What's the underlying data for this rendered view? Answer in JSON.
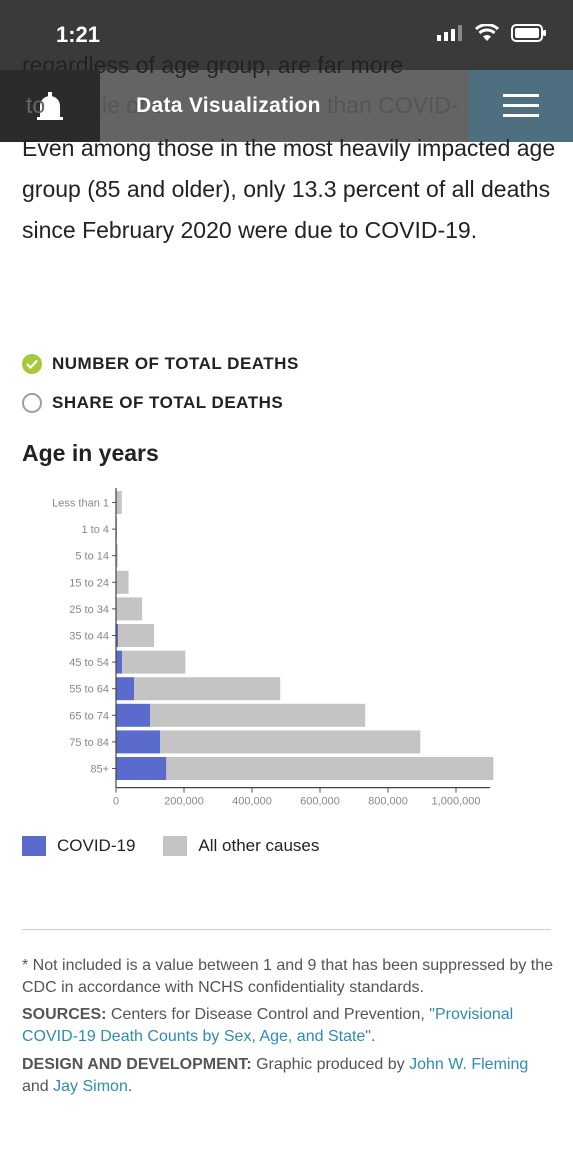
{
  "status_bar": {
    "time": "1:21"
  },
  "nav": {
    "title": "Data Visualization"
  },
  "partial_text": {
    "line1": "regardless of age group, are far more",
    "line2_left": "to",
    "line2_mid": "ie of s",
    "line2_right": "than COVID-"
  },
  "paragraph": "Even among those in the most heavily impacted age group (85 and older), only 13.3 percent of all deaths since February 2020 were due to COVID-19.",
  "toggles": [
    {
      "label": "NUMBER OF TOTAL DEATHS",
      "selected": true
    },
    {
      "label": "SHARE OF TOTAL DEATHS",
      "selected": false
    }
  ],
  "chart_title": "Age in years",
  "chart_data": {
    "type": "bar",
    "orientation": "horizontal",
    "stacked": true,
    "categories": [
      "Less than 1",
      "1 to 4",
      "5 to 14",
      "15 to 24",
      "25 to 34",
      "35 to 44",
      "45 to 54",
      "55 to 64",
      "65 to 74",
      "75 to 84",
      "85+"
    ],
    "series": [
      {
        "name": "COVID-19",
        "color": "#5b6acd",
        "values": [
          0,
          0,
          0,
          1000,
          2000,
          6000,
          18000,
          53000,
          100000,
          130000,
          148000
        ]
      },
      {
        "name": "All other causes",
        "color": "#c4c4c4",
        "values": [
          17000,
          3000,
          5000,
          36000,
          75000,
          106000,
          186000,
          430000,
          633000,
          765000,
          962000
        ]
      }
    ],
    "xlim": [
      0,
      1100000
    ],
    "xticks": [
      0,
      200000,
      400000,
      600000,
      800000,
      1000000
    ],
    "xtick_labels": [
      "0",
      "200,000",
      "400,000",
      "600,000",
      "800,000",
      "1,000,000"
    ],
    "legend_position": "bottom-left"
  },
  "legend": [
    {
      "label": "COVID-19",
      "color": "#5b6acd"
    },
    {
      "label": "All other causes",
      "color": "#c4c4c4"
    }
  ],
  "footnote": "* Not included is a value between 1 and 9 that has been suppressed by the CDC in accordance with NCHS confidentiality standards.",
  "sources": {
    "heading": "SOURCES:",
    "text": "Centers for Disease Control and Prevention, ",
    "link": "\"Provisional COVID-19 Death Counts by Sex, Age, and State\"",
    "end": "."
  },
  "credits": {
    "heading": "DESIGN AND DEVELOPMENT:",
    "text": "Graphic produced by ",
    "author1": "John W. Fleming",
    "and": " and ",
    "author2": "Jay Simon",
    "end": "."
  }
}
